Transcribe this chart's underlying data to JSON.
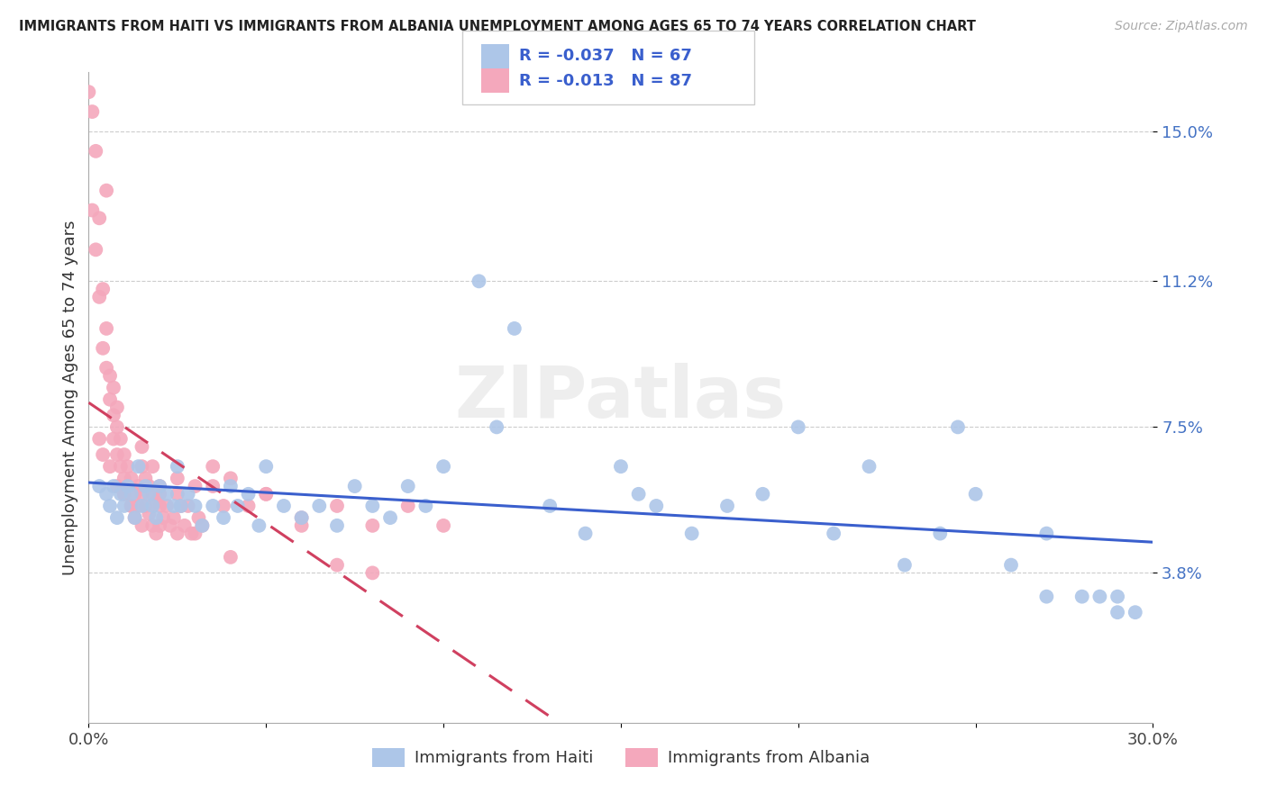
{
  "title": "IMMIGRANTS FROM HAITI VS IMMIGRANTS FROM ALBANIA UNEMPLOYMENT AMONG AGES 65 TO 74 YEARS CORRELATION CHART",
  "source": "Source: ZipAtlas.com",
  "ylabel": "Unemployment Among Ages 65 to 74 years",
  "xlim": [
    0.0,
    0.3
  ],
  "ylim": [
    0.0,
    0.165
  ],
  "xtick_positions": [
    0.0,
    0.05,
    0.1,
    0.15,
    0.2,
    0.25,
    0.3
  ],
  "xticklabels": [
    "0.0%",
    "",
    "",
    "",
    "",
    "",
    "30.0%"
  ],
  "ytick_positions": [
    0.038,
    0.075,
    0.112,
    0.15
  ],
  "yticklabels": [
    "3.8%",
    "7.5%",
    "11.2%",
    "15.0%"
  ],
  "haiti_color": "#adc6e8",
  "albania_color": "#f4a8bc",
  "haiti_line_color": "#3a5fcd",
  "albania_line_color": "#d04060",
  "haiti_R": -0.037,
  "haiti_N": 67,
  "albania_R": -0.013,
  "albania_N": 87,
  "watermark": "ZIPatlas",
  "legend_haiti": "Immigrants from Haiti",
  "legend_albania": "Immigrants from Albania",
  "haiti_x": [
    0.003,
    0.005,
    0.006,
    0.007,
    0.008,
    0.009,
    0.01,
    0.011,
    0.012,
    0.013,
    0.014,
    0.015,
    0.016,
    0.017,
    0.018,
    0.019,
    0.02,
    0.022,
    0.024,
    0.025,
    0.026,
    0.028,
    0.03,
    0.032,
    0.035,
    0.038,
    0.04,
    0.042,
    0.045,
    0.048,
    0.05,
    0.055,
    0.06,
    0.065,
    0.07,
    0.075,
    0.08,
    0.085,
    0.09,
    0.095,
    0.1,
    0.11,
    0.12,
    0.13,
    0.14,
    0.15,
    0.16,
    0.17,
    0.18,
    0.19,
    0.2,
    0.21,
    0.22,
    0.23,
    0.24,
    0.25,
    0.26,
    0.27,
    0.28,
    0.29,
    0.115,
    0.155,
    0.245,
    0.27,
    0.285,
    0.29,
    0.295
  ],
  "haiti_y": [
    0.06,
    0.058,
    0.055,
    0.06,
    0.052,
    0.058,
    0.055,
    0.06,
    0.058,
    0.052,
    0.065,
    0.055,
    0.06,
    0.058,
    0.055,
    0.052,
    0.06,
    0.058,
    0.055,
    0.065,
    0.055,
    0.058,
    0.055,
    0.05,
    0.055,
    0.052,
    0.06,
    0.055,
    0.058,
    0.05,
    0.065,
    0.055,
    0.052,
    0.055,
    0.05,
    0.06,
    0.055,
    0.052,
    0.06,
    0.055,
    0.065,
    0.112,
    0.1,
    0.055,
    0.048,
    0.065,
    0.055,
    0.048,
    0.055,
    0.058,
    0.075,
    0.048,
    0.065,
    0.04,
    0.048,
    0.058,
    0.04,
    0.032,
    0.032,
    0.028,
    0.075,
    0.058,
    0.075,
    0.048,
    0.032,
    0.032,
    0.028
  ],
  "albania_x": [
    0.0,
    0.001,
    0.001,
    0.002,
    0.002,
    0.003,
    0.003,
    0.004,
    0.004,
    0.005,
    0.005,
    0.005,
    0.006,
    0.006,
    0.007,
    0.007,
    0.007,
    0.008,
    0.008,
    0.008,
    0.009,
    0.009,
    0.01,
    0.01,
    0.01,
    0.011,
    0.011,
    0.012,
    0.012,
    0.013,
    0.013,
    0.014,
    0.014,
    0.015,
    0.015,
    0.015,
    0.016,
    0.016,
    0.017,
    0.017,
    0.018,
    0.018,
    0.019,
    0.019,
    0.02,
    0.02,
    0.02,
    0.021,
    0.022,
    0.023,
    0.024,
    0.025,
    0.025,
    0.026,
    0.027,
    0.028,
    0.029,
    0.03,
    0.031,
    0.032,
    0.035,
    0.038,
    0.04,
    0.045,
    0.05,
    0.06,
    0.07,
    0.08,
    0.09,
    0.1,
    0.003,
    0.004,
    0.006,
    0.008,
    0.01,
    0.012,
    0.015,
    0.018,
    0.02,
    0.025,
    0.03,
    0.035,
    0.04,
    0.05,
    0.06,
    0.07,
    0.08
  ],
  "albania_y": [
    0.16,
    0.155,
    0.13,
    0.145,
    0.12,
    0.128,
    0.108,
    0.11,
    0.095,
    0.1,
    0.09,
    0.135,
    0.088,
    0.082,
    0.085,
    0.078,
    0.072,
    0.08,
    0.075,
    0.068,
    0.072,
    0.065,
    0.068,
    0.062,
    0.058,
    0.065,
    0.06,
    0.062,
    0.055,
    0.058,
    0.052,
    0.06,
    0.055,
    0.065,
    0.058,
    0.05,
    0.062,
    0.055,
    0.06,
    0.053,
    0.058,
    0.05,
    0.056,
    0.048,
    0.055,
    0.05,
    0.06,
    0.052,
    0.055,
    0.05,
    0.052,
    0.058,
    0.048,
    0.055,
    0.05,
    0.055,
    0.048,
    0.06,
    0.052,
    0.05,
    0.06,
    0.055,
    0.062,
    0.055,
    0.058,
    0.052,
    0.055,
    0.05,
    0.055,
    0.05,
    0.072,
    0.068,
    0.065,
    0.06,
    0.058,
    0.055,
    0.07,
    0.065,
    0.058,
    0.062,
    0.048,
    0.065,
    0.042,
    0.058,
    0.05,
    0.04,
    0.038
  ]
}
